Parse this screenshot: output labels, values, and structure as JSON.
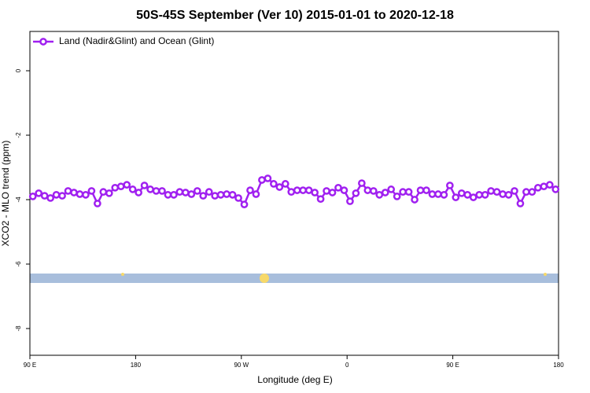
{
  "chart_data": {
    "type": "line",
    "title": "50S-45S September (Ver 10)   2015-01-01 to 2020-12-18",
    "x_label": "Longitude (deg E)",
    "y_label": "XCO2 - MLO trend (ppm)",
    "xlim": [
      90,
      540
    ],
    "ylim": [
      -8.83,
      1.22
    ],
    "xticks": [
      {
        "value": 90,
        "label": "90 E"
      },
      180,
      {
        "value": 270,
        "label": "90 W"
      },
      {
        "value": 360,
        "label": "0"
      },
      {
        "value": 450,
        "label": "90 E"
      },
      {
        "value": 540,
        "label": "180"
      }
    ],
    "yticks": [
      0,
      -2,
      -4,
      -6,
      -8
    ],
    "legend": "top-left",
    "x": [
      92.5,
      97.5,
      102.5,
      107.5,
      112.5,
      117.5,
      122.5,
      127.5,
      132.5,
      137.5,
      142.5,
      147.5,
      152.5,
      157.5,
      162.5,
      167.5,
      172.5,
      177.5,
      182.5,
      187.5,
      192.5,
      197.5,
      202.5,
      207.5,
      212.5,
      217.5,
      222.5,
      227.5,
      232.5,
      237.5,
      242.5,
      247.5,
      252.5,
      257.5,
      262.5,
      267.5,
      272.5,
      277.5,
      282.5,
      287.5,
      292.5,
      297.5,
      302.5,
      307.5,
      312.5,
      317.5,
      322.5,
      327.5,
      332.5,
      337.5,
      342.5,
      347.5,
      352.5,
      357.5,
      362.5,
      367.5,
      372.5,
      377.5,
      382.5,
      387.5,
      392.5,
      397.5,
      402.5,
      407.5,
      412.5,
      417.5,
      422.5,
      427.5,
      432.5,
      437.5,
      442.5,
      447.5,
      452.5,
      457.5,
      462.5,
      467.5,
      472.5,
      477.5,
      482.5,
      487.5,
      492.5,
      497.5,
      502.5,
      507.5,
      512.5,
      517.5,
      522.5,
      527.5,
      532.5,
      537.5
    ],
    "series": [
      {
        "name": "Land (Nadir&Glint) and Ocean (Glint)",
        "color": "#a020f0",
        "values": [
          -3.9,
          -3.8,
          -3.88,
          -3.95,
          -3.85,
          -3.88,
          -3.73,
          -3.78,
          -3.83,
          -3.85,
          -3.73,
          -4.12,
          -3.76,
          -3.8,
          -3.63,
          -3.59,
          -3.54,
          -3.68,
          -3.78,
          -3.56,
          -3.68,
          -3.73,
          -3.73,
          -3.85,
          -3.85,
          -3.76,
          -3.78,
          -3.83,
          -3.73,
          -3.88,
          -3.76,
          -3.88,
          -3.85,
          -3.83,
          -3.85,
          -3.95,
          -4.15,
          -3.71,
          -3.83,
          -3.39,
          -3.34,
          -3.51,
          -3.61,
          -3.51,
          -3.76,
          -3.71,
          -3.71,
          -3.71,
          -3.78,
          -3.98,
          -3.73,
          -3.78,
          -3.63,
          -3.71,
          -4.05,
          -3.8,
          -3.49,
          -3.71,
          -3.73,
          -3.85,
          -3.78,
          -3.68,
          -3.9,
          -3.76,
          -3.76,
          -4.0,
          -3.71,
          -3.71,
          -3.83,
          -3.83,
          -3.85,
          -3.56,
          -3.93,
          -3.8,
          -3.85,
          -3.93,
          -3.85,
          -3.85,
          -3.73,
          -3.76,
          -3.83,
          -3.85,
          -3.73,
          -4.12,
          -3.76,
          -3.76,
          -3.63,
          -3.59,
          -3.54,
          -3.68
        ]
      }
    ]
  }
}
